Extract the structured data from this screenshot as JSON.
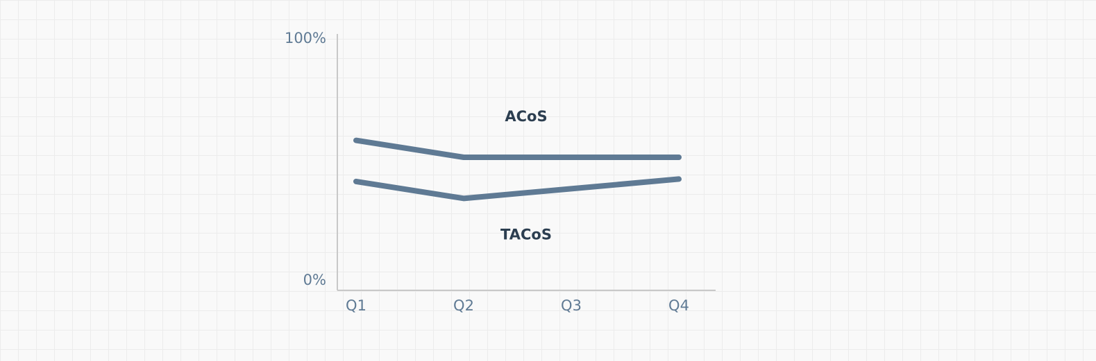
{
  "chart_data": {
    "type": "line",
    "categories": [
      "Q1",
      "Q2",
      "Q3",
      "Q4"
    ],
    "series": [
      {
        "name": "ACoS",
        "color": "#5f7a94",
        "values": [
          58,
          51,
          51,
          51
        ]
      },
      {
        "name": "TACoS",
        "color": "#5f7a94",
        "values": [
          41,
          34,
          38,
          42
        ]
      }
    ],
    "ylim": [
      0,
      100
    ],
    "yticks": [
      {
        "value": 0,
        "label": "0%"
      },
      {
        "value": 100,
        "label": "100%"
      }
    ]
  }
}
